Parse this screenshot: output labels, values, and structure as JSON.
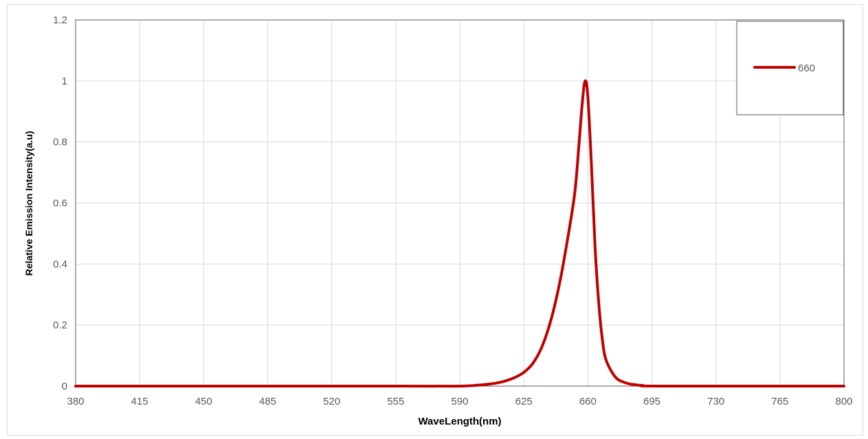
{
  "chart_data": {
    "type": "line",
    "title": "",
    "xlabel": "WaveLength(nm)",
    "ylabel": "Relative Emission Intensity(a.u)",
    "xlim": [
      380,
      800
    ],
    "ylim": [
      0,
      1.2
    ],
    "x_ticks": [
      380,
      415,
      450,
      485,
      520,
      555,
      590,
      625,
      660,
      695,
      730,
      765,
      800
    ],
    "y_ticks": [
      0,
      0.2,
      0.4,
      0.6,
      0.8,
      1,
      1.2
    ],
    "x_tick_labels": [
      "380",
      "415",
      "450",
      "485",
      "520",
      "555",
      "590",
      "625",
      "660",
      "695",
      "730",
      "765",
      "800"
    ],
    "y_tick_labels": [
      "0",
      "0.2",
      "0.4",
      "0.6",
      "0.8",
      "1",
      "1.2"
    ],
    "grid": true,
    "legend_position": "top-right",
    "series": [
      {
        "name": "660",
        "color": "#c00000",
        "points": [
          [
            380,
            0
          ],
          [
            560,
            0
          ],
          [
            590,
            0.0
          ],
          [
            600,
            0.003
          ],
          [
            605,
            0.006
          ],
          [
            610,
            0.01
          ],
          [
            615,
            0.017
          ],
          [
            620,
            0.028
          ],
          [
            625,
            0.045
          ],
          [
            630,
            0.075
          ],
          [
            635,
            0.13
          ],
          [
            640,
            0.22
          ],
          [
            645,
            0.35
          ],
          [
            650,
            0.52
          ],
          [
            653,
            0.64
          ],
          [
            655,
            0.78
          ],
          [
            657,
            0.93
          ],
          [
            658.5,
            1.0
          ],
          [
            660,
            0.95
          ],
          [
            662,
            0.72
          ],
          [
            664,
            0.45
          ],
          [
            666,
            0.27
          ],
          [
            668,
            0.15
          ],
          [
            670,
            0.085
          ],
          [
            675,
            0.03
          ],
          [
            680,
            0.012
          ],
          [
            685,
            0.005
          ],
          [
            690,
            0.002
          ],
          [
            700,
            0.0
          ],
          [
            800,
            0
          ]
        ]
      }
    ]
  }
}
